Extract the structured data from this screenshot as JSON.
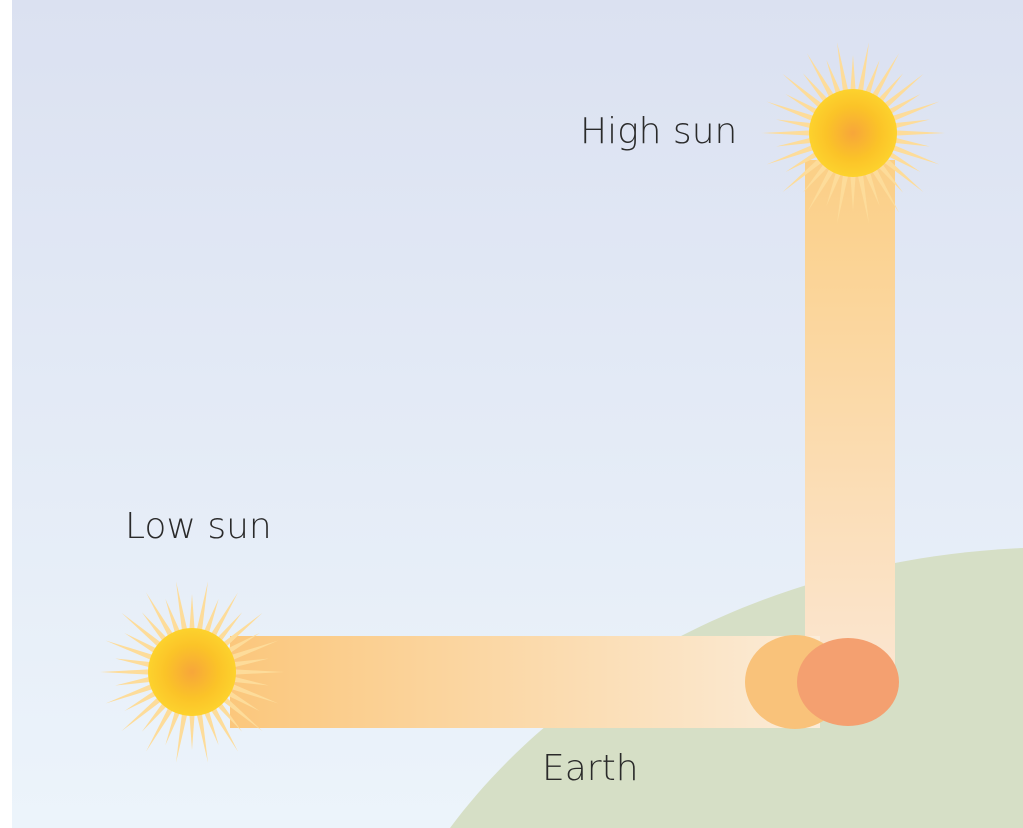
{
  "labels": {
    "high_sun": "High sun",
    "low_sun": "Low sun",
    "earth": "Earth"
  }
}
